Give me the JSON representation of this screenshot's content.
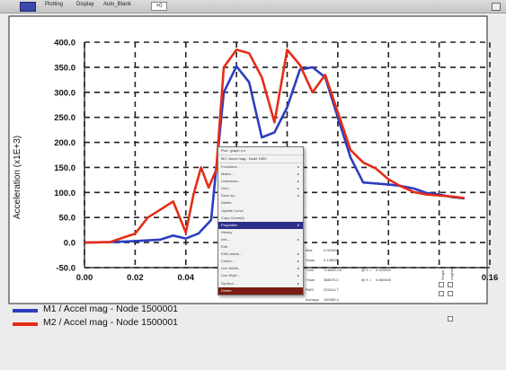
{
  "window": {
    "menus": [
      "Plotting",
      "Display",
      "Auto_Blank"
    ],
    "toolbar_value": "+0"
  },
  "chart_data": {
    "type": "line",
    "xlabel": "",
    "ylabel": "Acceleration (x1E+3)",
    "xlim": [
      0.0,
      0.16
    ],
    "ylim": [
      -50.0,
      400.0
    ],
    "x_tick_labels": [
      "0.00",
      "0.02",
      "0.04",
      "0.16"
    ],
    "x_tick_values": [
      0.0,
      0.02,
      0.04,
      0.16
    ],
    "y_tick_labels": [
      "400.0",
      "350.0",
      "300.0",
      "250.0",
      "200.0",
      "150.0",
      "100.0",
      "50.0",
      "0.0",
      "-50.0"
    ],
    "y_tick_values": [
      400,
      350,
      300,
      250,
      200,
      150,
      100,
      50,
      0,
      -50
    ],
    "grid": true,
    "series": [
      {
        "name": "M1 / Accel mag - Node 1500001",
        "color": "#2b3ec0",
        "x": [
          0,
          0.01,
          0.02,
          0.03,
          0.035,
          0.04,
          0.045,
          0.05,
          0.055,
          0.06,
          0.065,
          0.07,
          0.075,
          0.08,
          0.085,
          0.09,
          0.095,
          0.1,
          0.105,
          0.11,
          0.115,
          0.12,
          0.125,
          0.13,
          0.135,
          0.14,
          0.145,
          0.15
        ],
        "y": [
          0,
          1,
          3,
          6,
          14,
          8,
          18,
          45,
          300,
          352,
          320,
          210,
          220,
          270,
          345,
          350,
          330,
          250,
          170,
          120,
          118,
          116,
          113,
          108,
          99,
          96,
          91,
          88
        ]
      },
      {
        "name": "M2 / Accel mag - Node 1500001",
        "color": "#e52d17",
        "x": [
          0,
          0.01,
          0.02,
          0.025,
          0.03,
          0.035,
          0.04,
          0.043,
          0.046,
          0.049,
          0.052,
          0.055,
          0.06,
          0.065,
          0.07,
          0.075,
          0.08,
          0.085,
          0.09,
          0.095,
          0.1,
          0.105,
          0.11,
          0.115,
          0.12,
          0.125,
          0.13,
          0.135,
          0.14,
          0.145,
          0.15
        ],
        "y": [
          0,
          1,
          18,
          50,
          66,
          82,
          20,
          95,
          150,
          110,
          145,
          350,
          385,
          378,
          330,
          240,
          385,
          355,
          300,
          335,
          260,
          185,
          160,
          148,
          126,
          112,
          101,
          96,
          94,
          92,
          89
        ]
      }
    ]
  },
  "context_menu": {
    "header_lines": [
      "Plot : graph n.n",
      "M2 / Accel mag - Node 1500"
    ],
    "items": [
      {
        "label": "Functions...",
        "has_sub": true
      },
      {
        "label": "Matrix...",
        "has_sub": true
      },
      {
        "label": "Units/axes...",
        "has_sub": true
      },
      {
        "label": "Grid...",
        "has_sub": true
      },
      {
        "label": "Save as...",
        "has_sub": true
      },
      {
        "label": "Delete",
        "has_sub": false
      },
      {
        "label": "Update Curve",
        "has_sub": false
      },
      {
        "label": "Copy Curve(s)",
        "has_sub": false
      },
      {
        "label": "Properties",
        "has_sub": true,
        "selected": true
      },
      {
        "label": "History",
        "has_sub": false
      },
      {
        "label": "Info...",
        "has_sub": true
      },
      {
        "label": "Edit",
        "has_sub": false
      },
      {
        "label": "Edit Labels...",
        "has_sub": true
      },
      {
        "label": "Colour...",
        "has_sub": true
      },
      {
        "label": "Line Width...",
        "has_sub": true
      },
      {
        "label": "Line Style...",
        "has_sub": true
      },
      {
        "label": "Symbol...",
        "has_sub": true
      },
      {
        "label": "Delete",
        "has_sub": false,
        "danger": true
      }
    ]
  },
  "stats": {
    "rows": [
      {
        "label": "Max",
        "value": "0.000000"
      },
      {
        "label": "Xmax",
        "value": "0.136000"
      },
      {
        "label": "Ymin",
        "value": "-0.664E-03",
        "at_label": "@ X =",
        "at_value": "0.000000"
      },
      {
        "label": "Ymax",
        "value": "388075.0",
        "at_label": "@ X =",
        "at_value": "0.060408"
      },
      {
        "label": "RMS",
        "value": "203414.7"
      },
      {
        "label": "Average",
        "value": "150065.4"
      }
    ],
    "column_headers": [
      "Graph",
      "Legend"
    ]
  }
}
